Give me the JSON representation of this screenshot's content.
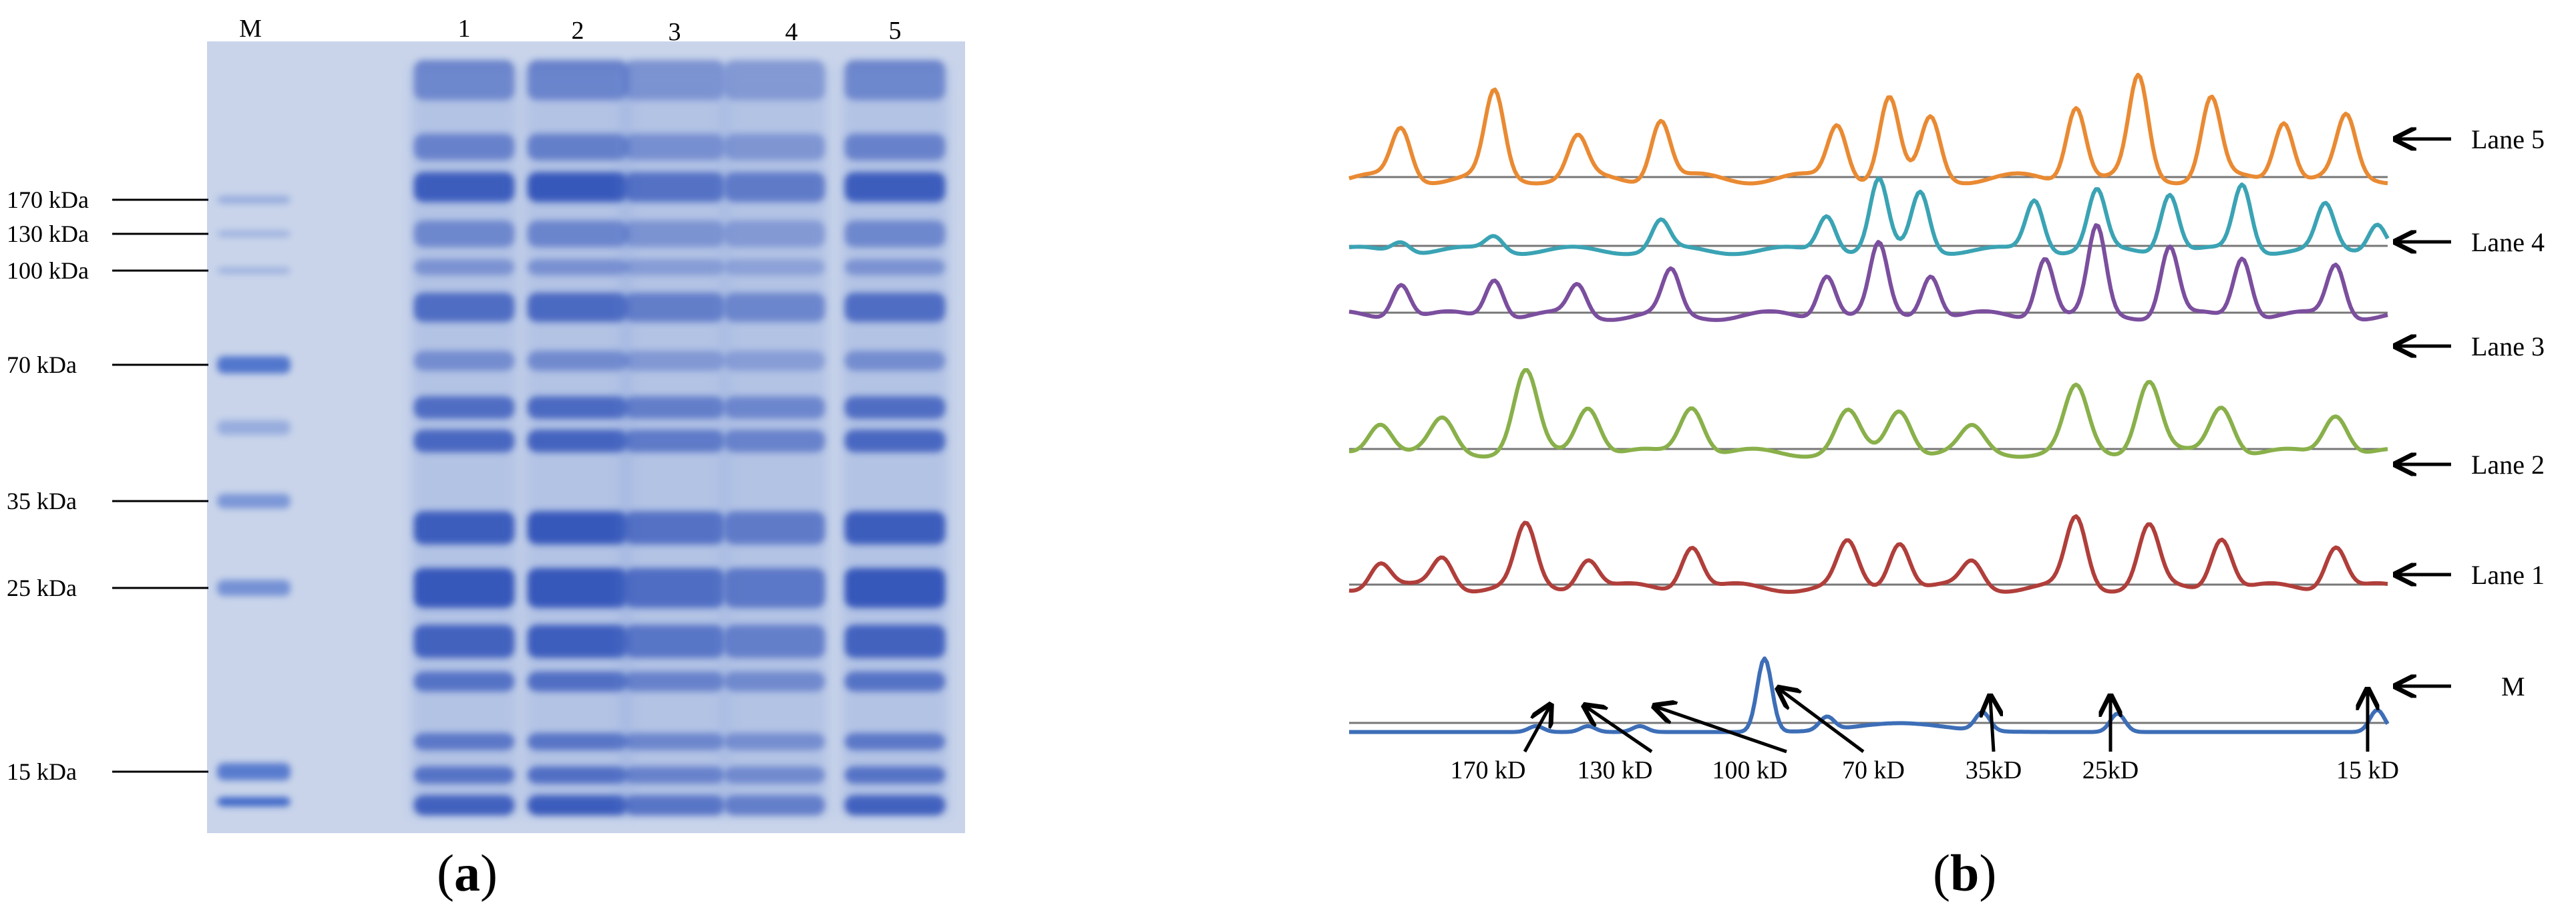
{
  "panel_a": {
    "label_open": "(",
    "label_letter": "a",
    "label_close": ")",
    "lane_headers": [
      "M",
      "1",
      "2",
      "3",
      "4",
      "5"
    ],
    "marker_labels": [
      "170 kDa",
      "130 kDa",
      "100 kDa",
      "70 kDa",
      "35 kDa",
      "25 kDa",
      "15 kDa"
    ],
    "colors": {
      "gel_background": "#c9d4ea",
      "band_dark": "#1e3fb0",
      "band_light": "#7b98d8",
      "marker_band": "#3d66c8"
    }
  },
  "panel_b": {
    "label_open": "(",
    "label_letter": "b",
    "label_close": ")",
    "traces": [
      {
        "label": "Lane 5",
        "color": "#e98a33"
      },
      {
        "label": "Lane 4",
        "color": "#3aa3b4"
      },
      {
        "label": "Lane 3",
        "color": "#7b4e9e"
      },
      {
        "label": "Lane 2",
        "color": "#89b04a"
      },
      {
        "label": "Lane 1",
        "color": "#b03e3a"
      },
      {
        "label": "M",
        "color": "#3d6eb7"
      }
    ],
    "marker_peak_labels": [
      "170 kD",
      "130 kD",
      "100 kD",
      "70 kD",
      "35kD",
      "25kD",
      "15 kD"
    ]
  }
}
